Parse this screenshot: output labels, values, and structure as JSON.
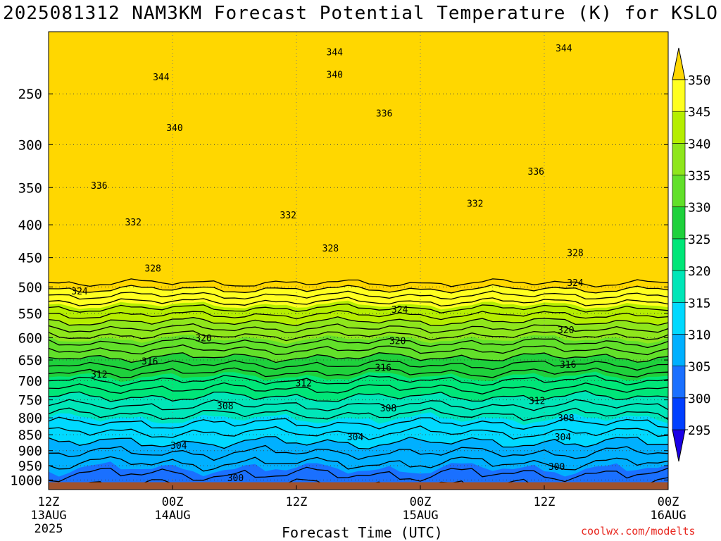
{
  "title": "2025081312 NAM3KM Forecast Potential Temperature (K) for KSLO",
  "xlabel": "Forecast Time (UTC)",
  "credit": "coolwx.com/modelts",
  "colors": {
    "ground": "#a0522d",
    "frame": "#000000",
    "grid": "#666666",
    "contour": "#000000",
    "fills": [
      "#1a00e6",
      "#0040ff",
      "#1a70ff",
      "#00b0ff",
      "#00d9ff",
      "#00e6b8",
      "#00e678",
      "#1fd13c",
      "#62e02a",
      "#8fe61c",
      "#b5ee00",
      "#ffff20",
      "#ffd700"
    ]
  },
  "chart_data": {
    "type": "heatmap",
    "title": "2025081312 NAM3KM Forecast Potential Temperature (K) for KSLO",
    "xlabel": "Forecast Time (UTC)",
    "ylabel": "",
    "y_scale": "log",
    "ylim": [
      1035,
      200
    ],
    "yticks": [
      250,
      300,
      350,
      400,
      450,
      500,
      550,
      600,
      650,
      700,
      750,
      800,
      850,
      900,
      950,
      1000
    ],
    "xlim": [
      0,
      60
    ],
    "xticks": [
      {
        "hour": 0,
        "label": "12Z",
        "sub": "13AUG",
        "year": "2025"
      },
      {
        "hour": 12,
        "label": "00Z",
        "sub": "14AUG",
        "year": ""
      },
      {
        "hour": 24,
        "label": "12Z",
        "sub": "",
        "year": ""
      },
      {
        "hour": 36,
        "label": "00Z",
        "sub": "15AUG",
        "year": ""
      },
      {
        "hour": 48,
        "label": "12Z",
        "sub": "",
        "year": ""
      },
      {
        "hour": 60,
        "label": "00Z",
        "sub": "16AUG",
        "year": ""
      }
    ],
    "colorbar": {
      "levels": [
        295,
        300,
        305,
        310,
        315,
        320,
        325,
        330,
        335,
        340,
        345,
        350
      ],
      "labels": [
        "295",
        "300",
        "305",
        "310",
        "315",
        "320",
        "325",
        "330",
        "335",
        "340",
        "345",
        "350"
      ],
      "extend": "both"
    },
    "surface_pressure": 1008,
    "contour_interval": 2,
    "contour_labels": [
      {
        "value": "344",
        "hour": 27.7,
        "p": 215
      },
      {
        "value": "344",
        "hour": 49.9,
        "p": 212
      },
      {
        "value": "344",
        "hour": 10.9,
        "p": 235
      },
      {
        "value": "340",
        "hour": 27.7,
        "p": 233
      },
      {
        "value": "340",
        "hour": 12.2,
        "p": 282
      },
      {
        "value": "336",
        "hour": 32.5,
        "p": 268
      },
      {
        "value": "336",
        "hour": 47.2,
        "p": 330
      },
      {
        "value": "336",
        "hour": 4.9,
        "p": 347
      },
      {
        "value": "332",
        "hour": 41.3,
        "p": 370
      },
      {
        "value": "332",
        "hour": 23.2,
        "p": 386
      },
      {
        "value": "332",
        "hour": 8.2,
        "p": 396
      },
      {
        "value": "328",
        "hour": 27.3,
        "p": 435
      },
      {
        "value": "328",
        "hour": 51.0,
        "p": 442
      },
      {
        "value": "328",
        "hour": 10.1,
        "p": 467
      },
      {
        "value": "324",
        "hour": 51.0,
        "p": 492
      },
      {
        "value": "324",
        "hour": 3.0,
        "p": 507
      },
      {
        "value": "324",
        "hour": 34.0,
        "p": 542
      },
      {
        "value": "320",
        "hour": 50.1,
        "p": 583
      },
      {
        "value": "320",
        "hour": 33.8,
        "p": 606
      },
      {
        "value": "320",
        "hour": 15.0,
        "p": 600
      },
      {
        "value": "316",
        "hour": 50.3,
        "p": 660
      },
      {
        "value": "316",
        "hour": 32.4,
        "p": 667
      },
      {
        "value": "316",
        "hour": 9.8,
        "p": 652
      },
      {
        "value": "312",
        "hour": 4.9,
        "p": 684
      },
      {
        "value": "312",
        "hour": 24.7,
        "p": 706
      },
      {
        "value": "312",
        "hour": 47.3,
        "p": 752
      },
      {
        "value": "308",
        "hour": 17.1,
        "p": 766
      },
      {
        "value": "308",
        "hour": 32.9,
        "p": 772
      },
      {
        "value": "308",
        "hour": 50.1,
        "p": 800
      },
      {
        "value": "304",
        "hour": 29.7,
        "p": 856
      },
      {
        "value": "304",
        "hour": 49.8,
        "p": 856
      },
      {
        "value": "304",
        "hour": 12.6,
        "p": 883
      },
      {
        "value": "300",
        "hour": 49.2,
        "p": 952
      },
      {
        "value": "300",
        "hour": 18.1,
        "p": 991
      }
    ]
  }
}
